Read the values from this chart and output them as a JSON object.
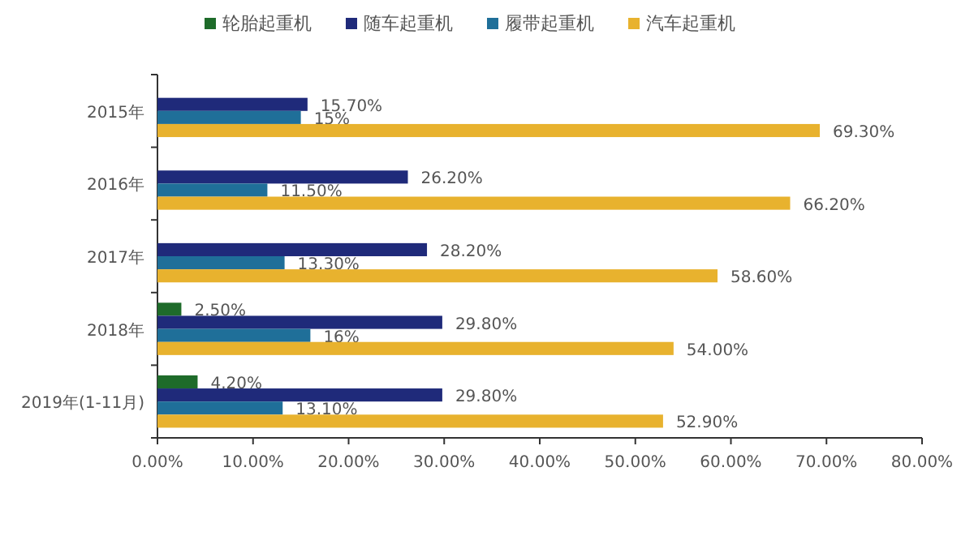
{
  "chart_data": {
    "type": "bar",
    "orientation": "horizontal",
    "legend": "top",
    "grid": false,
    "categories": [
      "2015年",
      "2016年",
      "2017年",
      "2018年",
      "2019年(1-11月)"
    ],
    "series": [
      {
        "name": "轮胎起重机",
        "color": "#1e6b2a",
        "values": [
          null,
          null,
          null,
          2.5,
          4.2
        ],
        "value_labels": [
          null,
          null,
          null,
          "2.50%",
          "4.20%"
        ]
      },
      {
        "name": "随车起重机",
        "color": "#1f2a7a",
        "values": [
          15.7,
          26.2,
          28.2,
          29.8,
          29.8
        ],
        "value_labels": [
          "15.70%",
          "26.20%",
          "28.20%",
          "29.80%",
          "29.80%"
        ]
      },
      {
        "name": "履带起重机",
        "color": "#1f6f99",
        "values": [
          15,
          11.5,
          13.3,
          16,
          13.1
        ],
        "value_labels": [
          "15%",
          "11.50%",
          "13.30%",
          "16%",
          "13.10%"
        ]
      },
      {
        "name": "汽车起重机",
        "color": "#e8b22e",
        "values": [
          69.3,
          66.2,
          58.6,
          54.0,
          52.9
        ],
        "value_labels": [
          "69.30%",
          "66.20%",
          "58.60%",
          "54.00%",
          "52.90%"
        ]
      }
    ],
    "xlim": [
      0,
      80
    ],
    "xticks": [
      {
        "value": 0,
        "label": "0.00%"
      },
      {
        "value": 10,
        "label": "10.00%"
      },
      {
        "value": 20,
        "label": "20.00%"
      },
      {
        "value": 30,
        "label": "30.00%"
      },
      {
        "value": 40,
        "label": "40.00%"
      },
      {
        "value": 50,
        "label": "50.00%"
      },
      {
        "value": 60,
        "label": "60.00%"
      },
      {
        "value": 70,
        "label": "70.00%"
      },
      {
        "value": 80,
        "label": "80.00%"
      }
    ]
  }
}
